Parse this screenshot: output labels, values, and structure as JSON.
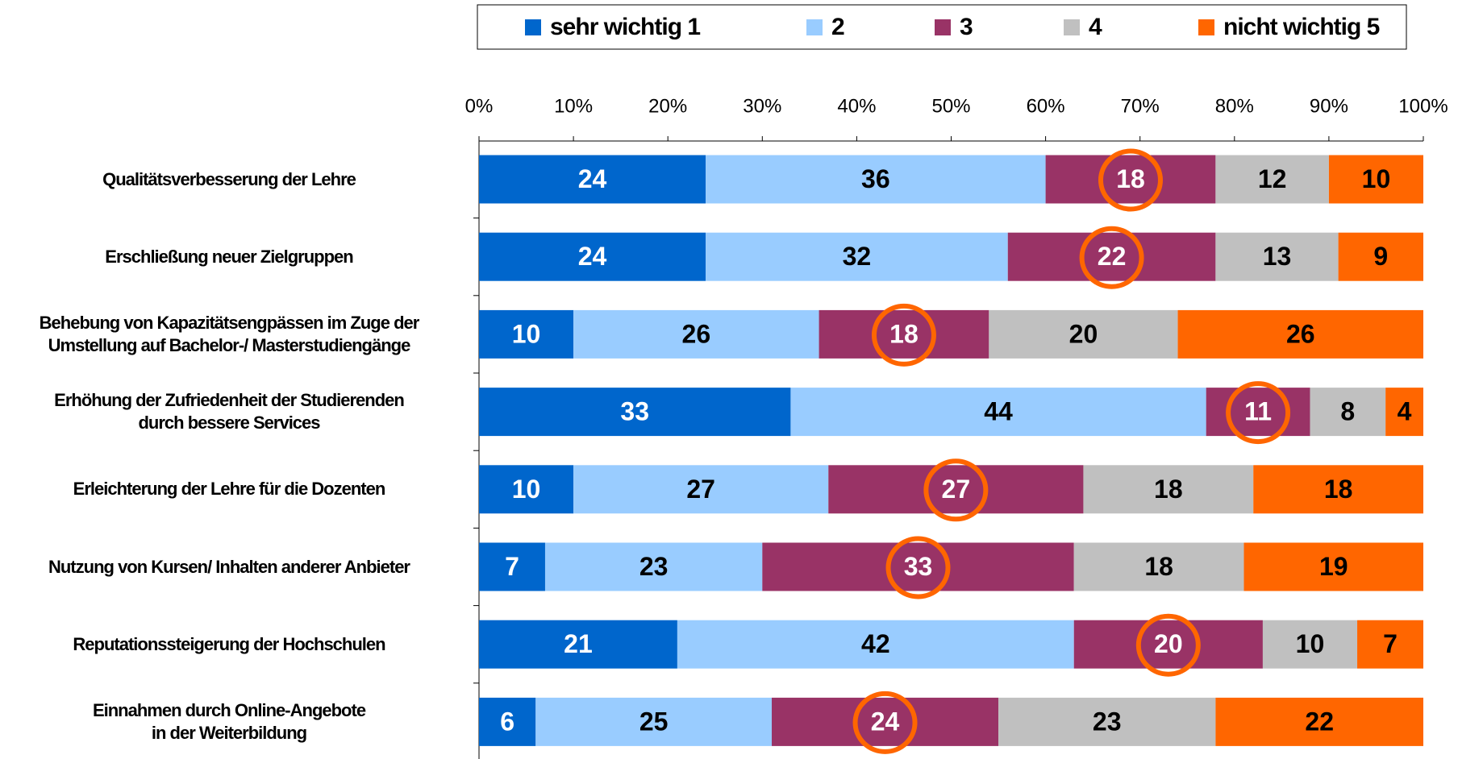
{
  "chart_data": {
    "type": "bar",
    "orientation": "horizontal",
    "stacked": true,
    "categories": [
      "Qualitätsverbesserung der Lehre",
      "Erschließung neuer Zielgruppen",
      "Behebung von Kapazitätsengpässen im Zuge der\nUmstellung auf Bachelor-/ Masterstudiengänge",
      "Erhöhung der Zufriedenheit der Studierenden\ndurch bessere Services",
      "Erleichterung der Lehre für die Dozenten",
      "Nutzung von Kursen/ Inhalten anderer Anbieter",
      "Reputationssteigerung der Hochschulen",
      "Einnahmen durch Online-Angebote\nin der Weiterbildung"
    ],
    "series": [
      {
        "name": "sehr wichtig 1",
        "color": "#0066cc",
        "label_color": "#ffffff",
        "values": [
          24,
          24,
          10,
          33,
          10,
          7,
          21,
          6
        ]
      },
      {
        "name": "2",
        "color": "#99ccff",
        "label_color": "#000000",
        "values": [
          36,
          32,
          26,
          44,
          27,
          23,
          42,
          25
        ]
      },
      {
        "name": "3",
        "color": "#993366",
        "label_color": "#ffffff",
        "values": [
          18,
          22,
          18,
          11,
          27,
          33,
          20,
          24
        ]
      },
      {
        "name": "4",
        "color": "#c0c0c0",
        "label_color": "#000000",
        "values": [
          12,
          13,
          20,
          8,
          18,
          18,
          10,
          23
        ]
      },
      {
        "name": "nicht wichtig 5",
        "color": "#ff6600",
        "label_color": "#000000",
        "values": [
          10,
          9,
          26,
          4,
          18,
          19,
          7,
          22
        ]
      }
    ],
    "xlim": [
      0,
      100
    ],
    "xticks": [
      {
        "value": 0,
        "label": "0%"
      },
      {
        "value": 10,
        "label": "10%"
      },
      {
        "value": 20,
        "label": "20%"
      },
      {
        "value": 30,
        "label": "30%"
      },
      {
        "value": 40,
        "label": "40%"
      },
      {
        "value": 50,
        "label": "50%"
      },
      {
        "value": 60,
        "label": "60%"
      },
      {
        "value": 70,
        "label": "70%"
      },
      {
        "value": 80,
        "label": "80%"
      },
      {
        "value": 90,
        "label": "90%"
      },
      {
        "value": 100,
        "label": "100%"
      }
    ],
    "legend": "top",
    "highlight_color": "#ff6600",
    "highlight_series": 2
  }
}
